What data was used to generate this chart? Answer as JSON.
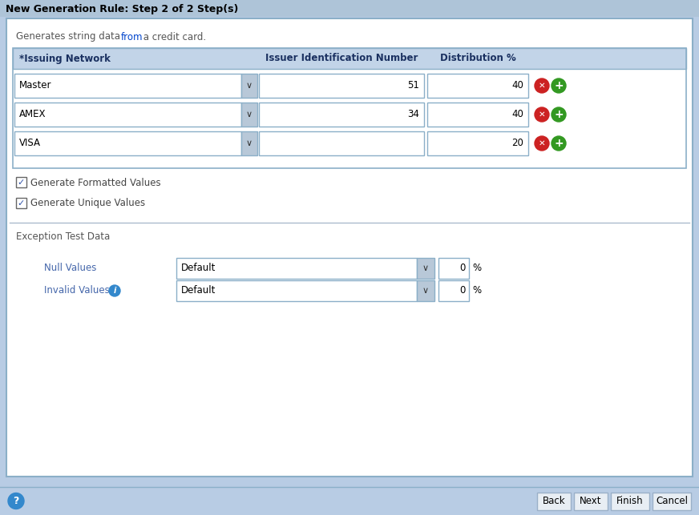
{
  "title": "New Generation Rule: Step 2 of 2 Step(s)",
  "subtitle_parts": [
    {
      "text": "Generates string data ",
      "link": false
    },
    {
      "text": "from",
      "link": true
    },
    {
      "text": " a credit card.",
      "link": false
    }
  ],
  "table_headers": [
    "*Issuing Network",
    "Issuer Identification Number",
    "Distribution %"
  ],
  "rows": [
    {
      "network": "Master",
      "id_number": "51",
      "distribution": "40"
    },
    {
      "network": "AMEX",
      "id_number": "34",
      "distribution": "40"
    },
    {
      "network": "VISA",
      "id_number": "",
      "distribution": "20"
    }
  ],
  "checkboxes": [
    {
      "label": "Generate Formatted Values",
      "checked": true
    },
    {
      "label": "Generate Unique Values",
      "checked": true
    }
  ],
  "exception_section": "Exception Test Data",
  "exception_rows": [
    {
      "label": "Null Values",
      "dropdown": "Default",
      "value": "0",
      "has_info": false
    },
    {
      "label": "Invalid Values",
      "dropdown": "Default",
      "value": "0",
      "has_info": true
    }
  ],
  "buttons": [
    "Back",
    "Next",
    "Finish",
    "Cancel"
  ],
  "bg_color": "#b8cce4",
  "panel_bg": "#ffffff",
  "title_bar_bg": "#aec4d8",
  "table_header_bg": "#c2d4e8",
  "border_color": "#8bafc8",
  "bold_color": "#1a3060",
  "subtitle_color": "#555555",
  "link_color": "#0044cc",
  "text_color": "#000000",
  "label_color": "#4466aa",
  "btn_bg": "#e8eef4",
  "btn_border": "#9ab0c8",
  "dropdown_arrow_bg": "#b8c8d8",
  "checkbox_color": "#3355aa",
  "red_btn": "#cc2222",
  "green_btn": "#339922",
  "info_color": "#3388cc"
}
